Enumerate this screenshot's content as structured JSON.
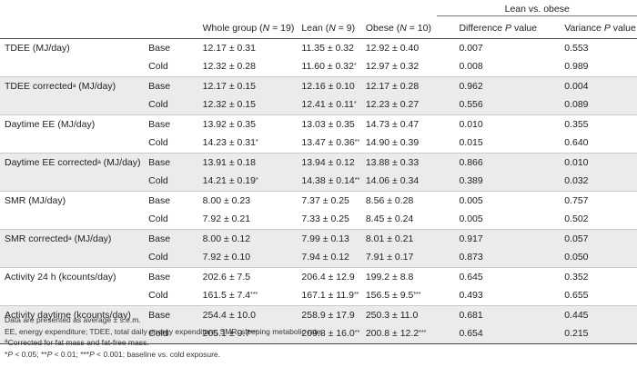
{
  "header": {
    "group_label": "Lean vs. obese",
    "col_whole": "Whole group (",
    "col_whole_n": "N",
    "col_whole_tail": " = 19)",
    "col_lean": "Lean (",
    "col_lean_n": "N",
    "col_lean_tail": " = 9)",
    "col_obese": "Obese (",
    "col_obese_n": "N",
    "col_obese_tail": " = 10)",
    "col_diff": "Difference ",
    "col_diff_p": "P",
    "col_diff_tail": " value",
    "col_var": "Variance ",
    "col_var_p": "P",
    "col_var_tail": " value"
  },
  "rows": [
    {
      "label": "TDEE (MJ/day)",
      "label_sup": "",
      "label_tail": "",
      "cond": "Base",
      "whole": "12.17 ± 0.31",
      "whole_star": "",
      "lean": "11.35 ± 0.32",
      "lean_star": "",
      "obese": "12.92 ± 0.40",
      "obese_star": "",
      "diff": "0.007",
      "var": "0.553"
    },
    {
      "label": "",
      "label_sup": "",
      "label_tail": "",
      "cond": "Cold",
      "whole": "12.32 ± 0.28",
      "whole_star": "",
      "lean": "11.60 ± 0.32",
      "lean_star": "*",
      "obese": "12.97 ± 0.32",
      "obese_star": "",
      "diff": "0.008",
      "var": "0.989"
    },
    {
      "label": "TDEE corrected",
      "label_sup": "a",
      "label_tail": " (MJ/day)",
      "cond": "Base",
      "whole": "12.17 ± 0.15",
      "whole_star": "",
      "lean": "12.16 ± 0.10",
      "lean_star": "",
      "obese": "12.17 ± 0.28",
      "obese_star": "",
      "diff": "0.962",
      "var": "0.004"
    },
    {
      "label": "",
      "label_sup": "",
      "label_tail": "",
      "cond": "Cold",
      "whole": "12.32 ± 0.15",
      "whole_star": "",
      "lean": "12.41 ± 0.11",
      "lean_star": "*",
      "obese": "12.23 ± 0.27",
      "obese_star": "",
      "diff": "0.556",
      "var": "0.089"
    },
    {
      "label": "Daytime EE (MJ/day)",
      "label_sup": "",
      "label_tail": "",
      "cond": "Base",
      "whole": "13.92 ± 0.35",
      "whole_star": "",
      "lean": "13.03 ± 0.35",
      "lean_star": "",
      "obese": "14.73 ± 0.47",
      "obese_star": "",
      "diff": "0.010",
      "var": "0.355"
    },
    {
      "label": "",
      "label_sup": "",
      "label_tail": "",
      "cond": "Cold",
      "whole": "14.23 ± 0.31",
      "whole_star": "*",
      "lean": "13.47 ± 0.36",
      "lean_star": "**",
      "obese": "14.90 ± 0.39",
      "obese_star": "",
      "diff": "0.015",
      "var": "0.640"
    },
    {
      "label": "Daytime EE corrected",
      "label_sup": "a",
      "label_tail": " (MJ/day)",
      "cond": "Base",
      "whole": "13.91 ± 0.18",
      "whole_star": "",
      "lean": "13.94 ± 0.12",
      "lean_star": "",
      "obese": "13.88 ± 0.33",
      "obese_star": "",
      "diff": "0.866",
      "var": "0.010"
    },
    {
      "label": "",
      "label_sup": "",
      "label_tail": "",
      "cond": "Cold",
      "whole": "14.21 ± 0.19",
      "whole_star": "*",
      "lean": "14.38 ± 0.14",
      "lean_star": "**",
      "obese": "14.06 ± 0.34",
      "obese_star": "",
      "diff": "0.389",
      "var": "0.032"
    },
    {
      "label": "SMR (MJ/day)",
      "label_sup": "",
      "label_tail": "",
      "cond": "Base",
      "whole": "8.00 ± 0.23",
      "whole_star": "",
      "lean": "7.37 ± 0.25",
      "lean_star": "",
      "obese": "8.56 ± 0.28",
      "obese_star": "",
      "diff": "0.005",
      "var": "0.757"
    },
    {
      "label": "",
      "label_sup": "",
      "label_tail": "",
      "cond": "Cold",
      "whole": "7.92 ± 0.21",
      "whole_star": "",
      "lean": "7.33 ± 0.25",
      "lean_star": "",
      "obese": "8.45 ± 0.24",
      "obese_star": "",
      "diff": "0.005",
      "var": "0.502"
    },
    {
      "label": "SMR corrected",
      "label_sup": "a",
      "label_tail": " (MJ/day)",
      "cond": "Base",
      "whole": "8.00 ± 0.12",
      "whole_star": "",
      "lean": "7.99 ± 0.13",
      "lean_star": "",
      "obese": "8.01 ± 0.21",
      "obese_star": "",
      "diff": "0.917",
      "var": "0.057"
    },
    {
      "label": "",
      "label_sup": "",
      "label_tail": "",
      "cond": "Cold",
      "whole": "7.92 ± 0.10",
      "whole_star": "",
      "lean": "7.94 ± 0.12",
      "lean_star": "",
      "obese": "7.91 ± 0.17",
      "obese_star": "",
      "diff": "0.873",
      "var": "0.050"
    },
    {
      "label": "Activity 24 h (kcounts/day)",
      "label_sup": "",
      "label_tail": "",
      "cond": "Base",
      "whole": "202.6 ± 7.5",
      "whole_star": "",
      "lean": "206.4 ± 12.9",
      "lean_star": "",
      "obese": "199.2 ± 8.8",
      "obese_star": "",
      "diff": "0.645",
      "var": "0.352"
    },
    {
      "label": "",
      "label_sup": "",
      "label_tail": "",
      "cond": "Cold",
      "whole": "161.5 ± 7.4",
      "whole_star": "***",
      "lean": "167.1 ± 11.9",
      "lean_star": "**",
      "obese": "156.5 ± 9.5",
      "obese_star": "***",
      "diff": "0.493",
      "var": "0.655"
    },
    {
      "label": "Activity daytime (kcounts/day)",
      "label_sup": "",
      "label_tail": "",
      "cond": "Base",
      "whole": "254.4 ± 10.0",
      "whole_star": "",
      "lean": "258.9 ± 17.9",
      "lean_star": "",
      "obese": "250.3 ± 11.0",
      "obese_star": "",
      "diff": "0.681",
      "var": "0.445"
    },
    {
      "label": "",
      "label_sup": "",
      "label_tail": "",
      "cond": "Cold",
      "whole": "205.1 ± 9.7",
      "whole_star": "***",
      "lean": "209.8 ± 16.0",
      "lean_star": "**",
      "obese": "200.8 ± 12.2",
      "obese_star": "***",
      "diff": "0.654",
      "var": "0.215"
    }
  ],
  "footnotes": {
    "line1": "Data are presented as average ± s.e.m.",
    "line2": "EE, energy expenditure; TDEE, total daily energy expenditure; SMR, sleeping metabolic rate.",
    "line3_sup": "a",
    "line3": "Corrected for fat mass and fat-free mass.",
    "line4_p1": "P",
    "line4_a": " < 0.05; **",
    "line4_p2": "P",
    "line4_b": " < 0.01; ***",
    "line4_p3": "P",
    "line4_c": " < 0.001; baseline vs. cold exposure.",
    "line4_star": "*"
  }
}
